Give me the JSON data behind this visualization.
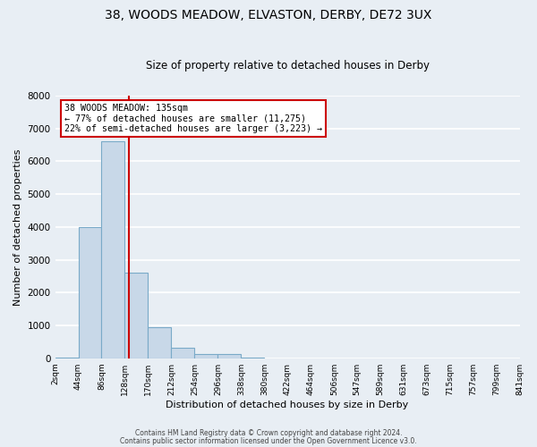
{
  "title": "38, WOODS MEADOW, ELVASTON, DERBY, DE72 3UX",
  "subtitle": "Size of property relative to detached houses in Derby",
  "xlabel": "Distribution of detached houses by size in Derby",
  "ylabel": "Number of detached properties",
  "bin_edges": [
    2,
    44,
    86,
    128,
    170,
    212,
    254,
    296,
    338,
    380,
    422,
    464,
    506,
    547,
    589,
    631,
    673,
    715,
    757,
    799,
    841
  ],
  "bar_heights": [
    10,
    4000,
    6600,
    2600,
    950,
    320,
    120,
    120,
    10,
    0,
    0,
    0,
    0,
    0,
    0,
    0,
    0,
    0,
    0,
    0
  ],
  "bar_color": "#c8d8e8",
  "bar_edge_color": "#7aaac8",
  "property_size": 135,
  "vline_color": "#cc0000",
  "annotation_line1": "38 WOODS MEADOW: 135sqm",
  "annotation_line2": "← 77% of detached houses are smaller (11,275)",
  "annotation_line3": "22% of semi-detached houses are larger (3,223) →",
  "annotation_box_color": "#ffffff",
  "annotation_box_edge": "#cc0000",
  "ylim": [
    0,
    8000
  ],
  "yticks": [
    0,
    1000,
    2000,
    3000,
    4000,
    5000,
    6000,
    7000,
    8000
  ],
  "x_tick_labels": [
    "2sqm",
    "44sqm",
    "86sqm",
    "128sqm",
    "170sqm",
    "212sqm",
    "254sqm",
    "296sqm",
    "338sqm",
    "380sqm",
    "422sqm",
    "464sqm",
    "506sqm",
    "547sqm",
    "589sqm",
    "631sqm",
    "673sqm",
    "715sqm",
    "757sqm",
    "799sqm",
    "841sqm"
  ],
  "footer1": "Contains HM Land Registry data © Crown copyright and database right 2024.",
  "footer2": "Contains public sector information licensed under the Open Government Licence v3.0.",
  "bg_color": "#e8eef4",
  "grid_color": "#ffffff",
  "title_fontsize": 10,
  "subtitle_fontsize": 8.5
}
